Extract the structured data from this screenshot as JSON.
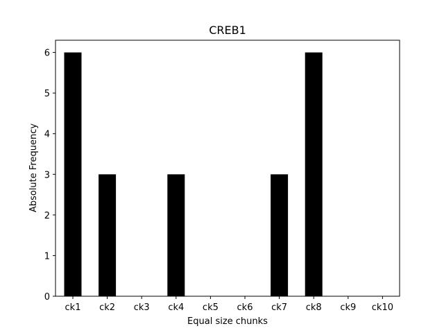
{
  "chart_data": {
    "type": "bar",
    "title": "CREB1",
    "xlabel": "Equal size chunks",
    "ylabel": "Absolute Frequency",
    "categories": [
      "ck1",
      "ck2",
      "ck3",
      "ck4",
      "ck5",
      "ck6",
      "ck7",
      "ck8",
      "ck9",
      "ck10"
    ],
    "values": [
      6,
      3,
      0,
      3,
      0,
      0,
      3,
      6,
      0,
      0
    ],
    "ylim": [
      0,
      6.3
    ],
    "yticks": [
      0,
      1,
      2,
      3,
      4,
      5,
      6
    ],
    "grid": false,
    "bar_color": "#000000"
  }
}
